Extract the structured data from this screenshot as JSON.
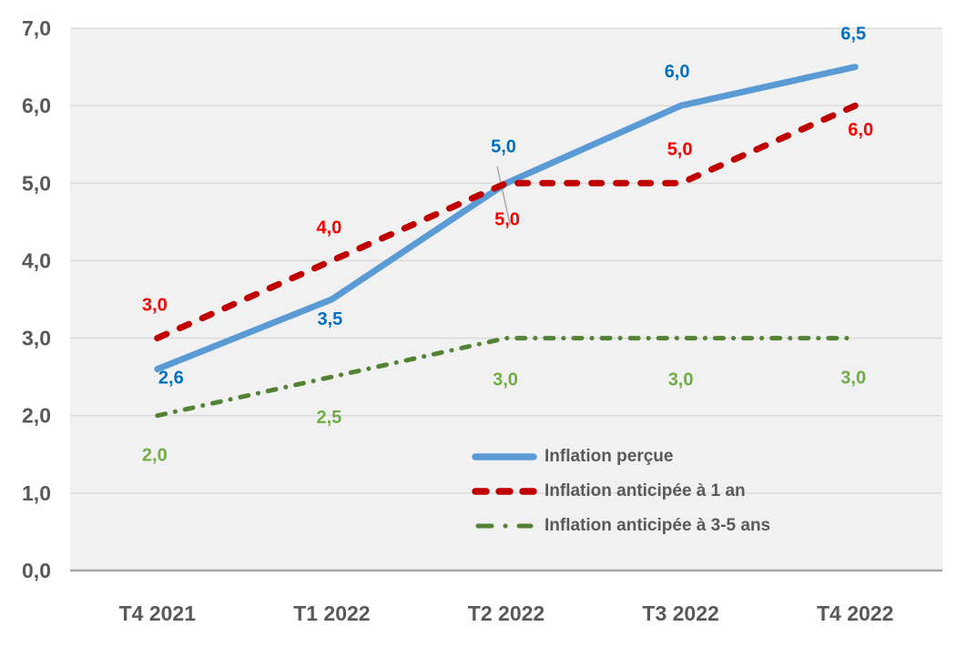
{
  "chart_data": {
    "type": "line",
    "categories": [
      "T4 2021",
      "T1 2022",
      "T2 2022",
      "T3 2022",
      "T4 2022"
    ],
    "series": [
      {
        "name": "Inflation perçue",
        "style": "solid",
        "color": "#5B9BD5",
        "label_color": "#0070C0",
        "values": [
          2.6,
          3.5,
          5.0,
          6.0,
          6.5
        ],
        "labels": [
          "2,6",
          "3,5",
          "5,0",
          "6,0",
          "6,5"
        ]
      },
      {
        "name": "Inflation anticipée à 1 an",
        "style": "dashed",
        "color": "#C00000",
        "label_color": "#FF0000",
        "values": [
          3.0,
          4.0,
          5.0,
          5.0,
          6.0
        ],
        "labels": [
          "3,0",
          "4,0",
          "5,0",
          "5,0",
          "6,0"
        ]
      },
      {
        "name": "Inflation anticipée à 3-5 ans",
        "style": "dashdot",
        "color": "#548235",
        "label_color": "#70AD47",
        "values": [
          2.0,
          2.5,
          3.0,
          3.0,
          3.0
        ],
        "labels": [
          "2,0",
          "2,5",
          "3,0",
          "3,0",
          "3,0"
        ]
      }
    ],
    "y_ticks": [
      {
        "value": 7,
        "label": "7,0"
      },
      {
        "value": 6,
        "label": "6,0"
      },
      {
        "value": 5,
        "label": "5,0"
      },
      {
        "value": 4,
        "label": "4,0"
      },
      {
        "value": 3,
        "label": "3,0"
      },
      {
        "value": 2,
        "label": "2,0"
      },
      {
        "value": 1,
        "label": "1,0"
      },
      {
        "value": 0,
        "label": "0,0"
      }
    ],
    "ylim": [
      0,
      7
    ],
    "title": "",
    "xlabel": "",
    "ylabel": "",
    "grid": true,
    "legend_position": "inside-bottom-right",
    "colors": {
      "plot_bg": "#F1F1F1",
      "gridline": "#D9D9D9",
      "axis_line": "#A6A6A6",
      "tick_text": "#595959",
      "legend_text": "#595959",
      "leader_line": "#A6A6A6"
    }
  }
}
